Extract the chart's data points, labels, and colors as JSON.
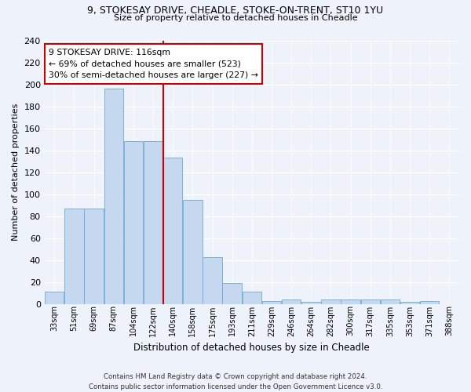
{
  "title1": "9, STOKESAY DRIVE, CHEADLE, STOKE-ON-TRENT, ST10 1YU",
  "title2": "Size of property relative to detached houses in Cheadle",
  "xlabel": "Distribution of detached houses by size in Cheadle",
  "ylabel": "Number of detached properties",
  "categories": [
    "33sqm",
    "51sqm",
    "69sqm",
    "87sqm",
    "104sqm",
    "122sqm",
    "140sqm",
    "158sqm",
    "175sqm",
    "193sqm",
    "211sqm",
    "229sqm",
    "246sqm",
    "264sqm",
    "282sqm",
    "300sqm",
    "317sqm",
    "335sqm",
    "353sqm",
    "371sqm",
    "388sqm"
  ],
  "values": [
    11,
    87,
    87,
    196,
    148,
    148,
    133,
    95,
    43,
    19,
    11,
    3,
    4,
    2,
    4,
    4,
    4,
    4,
    2,
    3,
    0
  ],
  "bar_color": "#c5d8ef",
  "bar_edge_color": "#6aaad4",
  "vline_x": 5.5,
  "vline_color": "#cc0000",
  "annotation_text": "9 STOKESAY DRIVE: 116sqm\n← 69% of detached houses are smaller (523)\n30% of semi-detached houses are larger (227) →",
  "annotation_box_color": "#ffffff",
  "annotation_box_edge_color": "#cc0000",
  "ylim": [
    0,
    240
  ],
  "yticks": [
    0,
    20,
    40,
    60,
    80,
    100,
    120,
    140,
    160,
    180,
    200,
    220,
    240
  ],
  "footer1": "Contains HM Land Registry data © Crown copyright and database right 2024.",
  "footer2": "Contains public sector information licensed under the Open Government Licence v3.0.",
  "bg_color": "#eef2fb",
  "plot_bg_color": "#eef2fb"
}
